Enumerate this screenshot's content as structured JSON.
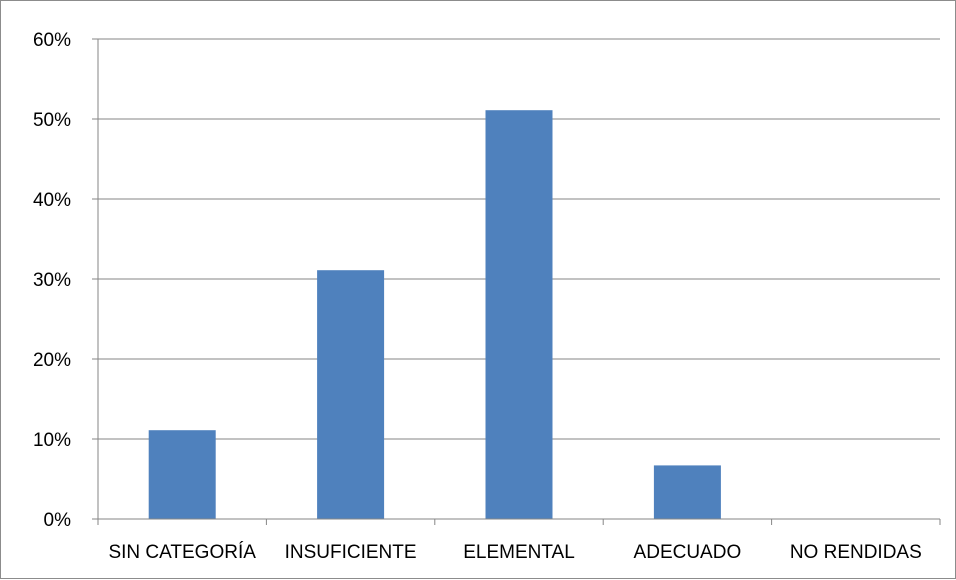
{
  "chart_data": {
    "type": "bar",
    "categories": [
      "SIN CATEGORÍA",
      "INSUFICIENTE",
      "ELEMENTAL",
      "ADECUADO",
      "NO RENDIDAS"
    ],
    "values": [
      0.111,
      0.311,
      0.511,
      0.067,
      0.0
    ],
    "ylim": [
      0,
      0.6
    ],
    "yticks": [
      "0%",
      "10%",
      "20%",
      "30%",
      "40%",
      "50%",
      "60%"
    ],
    "grid": true,
    "legend": "none",
    "colors": {
      "bar": "#4f81bd",
      "grid": "#868686",
      "axis": "#868686"
    }
  }
}
